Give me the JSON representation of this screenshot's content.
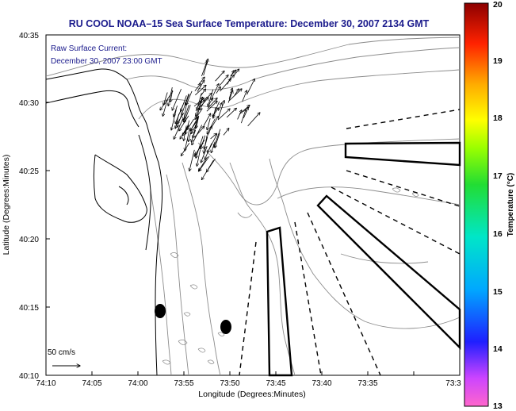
{
  "title": "RU COOL  NOAA–15  Sea Surface Temperature:  December 30, 2007 2134 GMT",
  "current_label": "Raw Surface Current:",
  "current_time": "December 30, 2007 23:00 GMT",
  "scale_label": "50 cm/s",
  "xlabel": "Longitude (Degrees:Minutes)",
  "ylabel": "Latitude (Degrees:Minutes)",
  "x_ticks": [
    "74:10",
    "74:05",
    "74:00",
    "73:55",
    "73:50",
    "73:45",
    "73:40",
    "73:35",
    "73:3"
  ],
  "y_ticks": [
    "40:35",
    "40:30",
    "40:25",
    "40:20",
    "40:15",
    "40:10"
  ],
  "colorbar": {
    "label": "Temperature (°C)",
    "ticks": [
      "20",
      "19",
      "18",
      "17",
      "16",
      "15",
      "14",
      "13"
    ],
    "range": [
      13,
      20
    ]
  },
  "colors": {
    "title": "#1a1a8c",
    "annotation": "#1a1a8c",
    "axes": "#000000",
    "contour": "#8c8c8c",
    "coast": "#000000"
  }
}
